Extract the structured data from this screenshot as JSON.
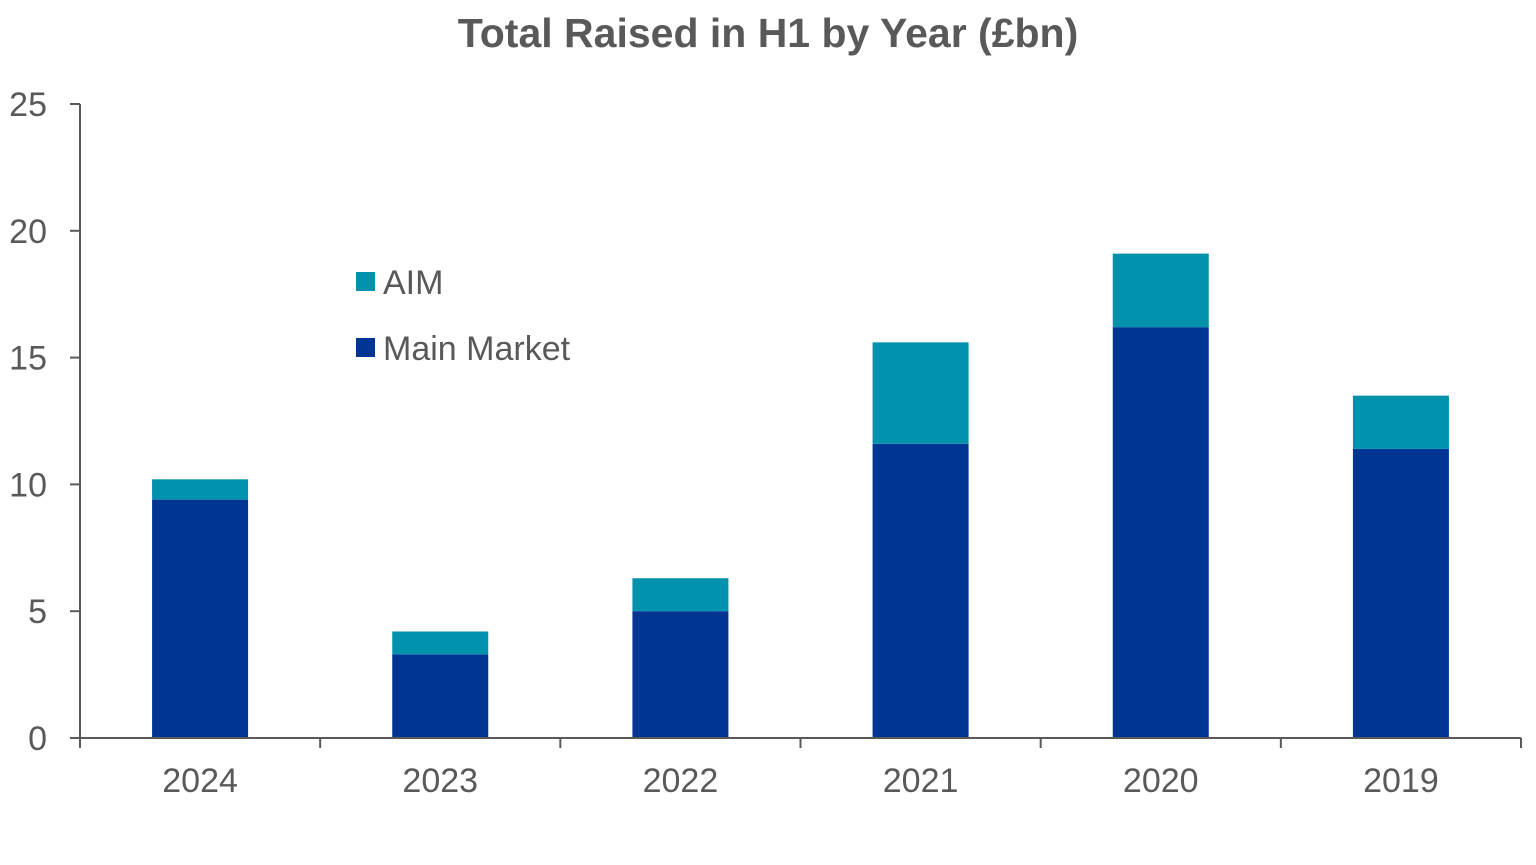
{
  "chart_data": {
    "type": "bar",
    "stacked": true,
    "title": "Total Raised in H1 by Year (£bn)",
    "xlabel": "",
    "ylabel": "",
    "categories": [
      "2024",
      "2023",
      "2022",
      "2021",
      "2020",
      "2019"
    ],
    "series": [
      {
        "name": "Main Market",
        "color": "#003594",
        "values": [
          9.4,
          3.3,
          5.0,
          11.6,
          16.2,
          11.4
        ]
      },
      {
        "name": "AIM",
        "color": "#0091AC",
        "values": [
          0.8,
          0.9,
          1.3,
          4.0,
          2.9,
          2.1
        ]
      }
    ],
    "ylim": [
      0,
      25
    ],
    "yticks": [
      0,
      5,
      10,
      15,
      20,
      25
    ],
    "grid": false,
    "legend": {
      "position": "upper-left-inside",
      "order": [
        "AIM",
        "Main Market"
      ]
    }
  }
}
